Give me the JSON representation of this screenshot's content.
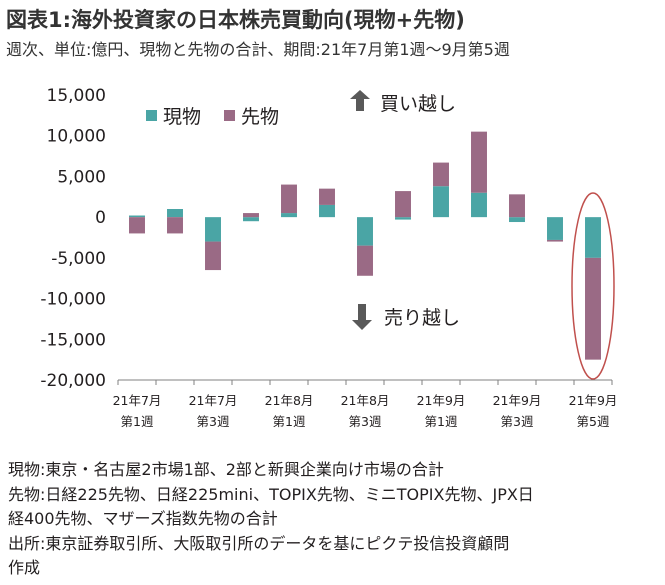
{
  "header": {
    "title": "図表1:海外投資家の日本株売買動向(現物+先物)",
    "subtitle": "週次、単位:億円、現物と先物の合計、期間:21年7月第1週〜9月第5週"
  },
  "chart_data": {
    "type": "bar",
    "stacked": true,
    "title": "",
    "xlabel": "",
    "ylabel": "",
    "ylim": [
      -20000,
      15000
    ],
    "yticks": [
      15000,
      10000,
      5000,
      0,
      -5000,
      -10000,
      -15000,
      -20000
    ],
    "ytick_labels": [
      "15,000",
      "10,000",
      "5,000",
      "0",
      "-5,000",
      "-10,000",
      "-15,000",
      "-20,000"
    ],
    "categories": [
      "7-1",
      "7-2",
      "7-3",
      "7-4",
      "8-1",
      "8-2",
      "8-3",
      "8-4",
      "9-1",
      "9-2",
      "9-3",
      "9-4",
      "9-5"
    ],
    "x_tick_labels": [
      {
        "index": 0,
        "line1": "21年7月",
        "line2": "第1週"
      },
      {
        "index": 2,
        "line1": "21年7月",
        "line2": "第3週"
      },
      {
        "index": 4,
        "line1": "21年8月",
        "line2": "第1週"
      },
      {
        "index": 6,
        "line1": "21年8月",
        "line2": "第3週"
      },
      {
        "index": 8,
        "line1": "21年9月",
        "line2": "第1週"
      },
      {
        "index": 10,
        "line1": "21年9月",
        "line2": "第3週"
      },
      {
        "index": 12,
        "line1": "21年9月",
        "line2": "第5週"
      }
    ],
    "series": [
      {
        "name": "現物",
        "color": "#4aa5a5",
        "values": [
          200,
          1000,
          -3000,
          -500,
          500,
          1500,
          -3500,
          -300,
          3800,
          3000,
          -600,
          -2800,
          -5000
        ]
      },
      {
        "name": "先物",
        "color": "#9a6a85",
        "values": [
          -2000,
          -2000,
          -3500,
          500,
          3500,
          2000,
          -3700,
          3200,
          2900,
          7500,
          2800,
          -200,
          -12500
        ]
      }
    ],
    "legend": {
      "placement": "top-left"
    },
    "grid": false,
    "annotations": {
      "buy": "買い越し",
      "sell": "売り越し",
      "highlight_index": 12,
      "highlight_color": "#c0504d"
    }
  },
  "notes": [
    "現物:東京・名古屋2市場1部、2部と新興企業向け市場の合計",
    "先物:日経225先物、日経225mini、TOPIX先物、ミニTOPIX先物、JPX日",
    "経400先物、マザーズ指数先物の合計",
    "出所:東京証券取引所、大阪取引所のデータを基にピクテ投信投資顧問",
    "作成"
  ]
}
